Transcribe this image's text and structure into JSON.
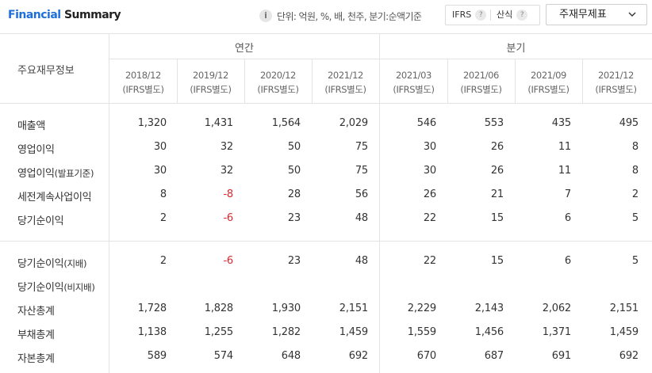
{
  "header": {
    "title_prefix": "Financial",
    "title_suffix": "Summary",
    "info_icon": "i",
    "unit_text": "단위: 억원, %, 배, 천주, 분기:순액기준",
    "standard_toggle": {
      "options": [
        {
          "label": "IFRS",
          "help": "?"
        },
        {
          "label": "산식",
          "help": "?"
        }
      ]
    },
    "statement_select": {
      "value": "주재무제표",
      "icon": "chevron-down-icon"
    }
  },
  "table": {
    "corner_label": "주요재무정보",
    "groups": [
      "연간",
      "분기"
    ],
    "columns": [
      {
        "period": "2018/12",
        "basis": "(IFRS별도)"
      },
      {
        "period": "2019/12",
        "basis": "(IFRS별도)"
      },
      {
        "period": "2020/12",
        "basis": "(IFRS별도)"
      },
      {
        "period": "2021/12",
        "basis": "(IFRS별도)"
      },
      {
        "period": "2021/03",
        "basis": "(IFRS별도)"
      },
      {
        "period": "2021/06",
        "basis": "(IFRS별도)"
      },
      {
        "period": "2021/09",
        "basis": "(IFRS별도)"
      },
      {
        "period": "2021/12",
        "basis": "(IFRS별도)"
      }
    ],
    "rows": [
      {
        "label": "매출액",
        "sub": "",
        "values": [
          "1,320",
          "1,431",
          "1,564",
          "2,029",
          "546",
          "553",
          "435",
          "495"
        ]
      },
      {
        "label": "영업이익",
        "sub": "",
        "values": [
          "30",
          "32",
          "50",
          "75",
          "30",
          "26",
          "11",
          "8"
        ]
      },
      {
        "label": "영업이익",
        "sub": "(발표기준)",
        "values": [
          "30",
          "32",
          "50",
          "75",
          "30",
          "26",
          "11",
          "8"
        ]
      },
      {
        "label": "세전계속사업이익",
        "sub": "",
        "values": [
          "8",
          "-8",
          "28",
          "56",
          "26",
          "21",
          "7",
          "2"
        ]
      },
      {
        "label": "당기순이익",
        "sub": "",
        "values": [
          "2",
          "-6",
          "23",
          "48",
          "22",
          "15",
          "6",
          "5"
        ]
      },
      {
        "label": "당기순이익",
        "sub": "(지배)",
        "values": [
          "2",
          "-6",
          "23",
          "48",
          "22",
          "15",
          "6",
          "5"
        ]
      },
      {
        "label": "당기순이익",
        "sub": "(비지배)",
        "values": [
          "",
          "",
          "",
          "",
          "",
          "",
          "",
          ""
        ]
      },
      {
        "label": "자산총계",
        "sub": "",
        "values": [
          "1,728",
          "1,828",
          "1,930",
          "2,151",
          "2,229",
          "2,143",
          "2,062",
          "2,151"
        ]
      },
      {
        "label": "부채총계",
        "sub": "",
        "values": [
          "1,138",
          "1,255",
          "1,282",
          "1,459",
          "1,559",
          "1,456",
          "1,371",
          "1,459"
        ]
      },
      {
        "label": "자본총계",
        "sub": "",
        "values": [
          "589",
          "574",
          "648",
          "692",
          "670",
          "687",
          "691",
          "692"
        ]
      }
    ],
    "negative_color": "#e0252c",
    "accent_color": "#1e6fd9"
  }
}
